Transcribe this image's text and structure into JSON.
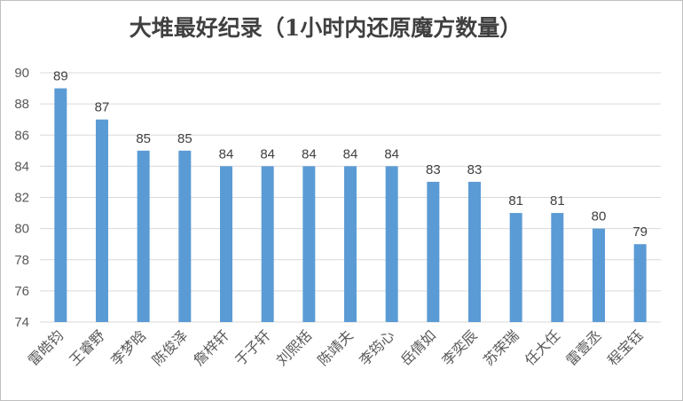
{
  "chart_data": {
    "type": "bar",
    "title": "大堆最好纪录（1小时内还原魔方数量）",
    "categories": [
      "雷皓钧",
      "王睿野",
      "李梦晗",
      "陈俊泽",
      "詹梓轩",
      "于子轩",
      "刘熙栝",
      "陈靖夫",
      "李筠心",
      "岳倩如",
      "李奕辰",
      "苏荣瑞",
      "任大任",
      "雷壹丞",
      "程宝钰"
    ],
    "values": [
      89,
      87,
      85,
      85,
      84,
      84,
      84,
      84,
      84,
      83,
      83,
      81,
      81,
      80,
      79
    ],
    "ylim": [
      74,
      90
    ],
    "yticks": [
      74,
      76,
      78,
      80,
      82,
      84,
      86,
      88,
      90
    ],
    "grid": true,
    "legend": "none",
    "colors": {
      "bar": "#5b9bd5"
    }
  }
}
